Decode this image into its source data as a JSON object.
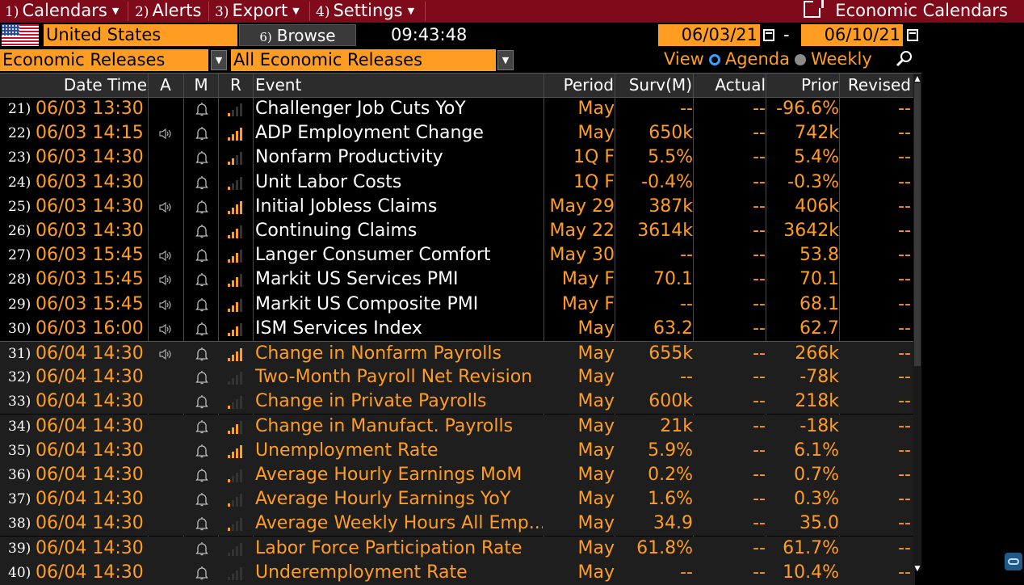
{
  "menu": {
    "items": [
      {
        "num": "1)",
        "label": "Calendars"
      },
      {
        "num": "2)",
        "label": "Alerts"
      },
      {
        "num": "3)",
        "label": "Export"
      },
      {
        "num": "4)",
        "label": "Settings"
      }
    ],
    "title": "Economic Calendars"
  },
  "toolbar": {
    "country": "United States",
    "browse_num": "6)",
    "browse_label": "Browse",
    "time": "09:43:48",
    "date_from": "06/03/21",
    "date_sep": "-",
    "date_to": "06/10/21",
    "category": "Economic Releases",
    "filter": "All Economic Releases",
    "view_label": "View",
    "view_agenda": "Agenda",
    "view_weekly": "Weekly"
  },
  "table": {
    "headers": {
      "datetime": "Date Time",
      "a": "A",
      "m": "M",
      "r": "R",
      "event": "Event",
      "period": "Period",
      "surv": "Surv(M)",
      "actual": "Actual",
      "prior": "Prior",
      "revised": "Revised"
    },
    "rows": [
      {
        "n": "21)",
        "dt": "06/03 13:30",
        "spk": false,
        "bars": 1,
        "event": "Challenger Job Cuts YoY",
        "period": "May",
        "surv": "--",
        "actual": "--",
        "prior": "-96.6%",
        "revised": "--"
      },
      {
        "n": "22)",
        "dt": "06/03 14:15",
        "spk": true,
        "bars": 4,
        "event": "ADP Employment Change",
        "period": "May",
        "surv": "650k",
        "actual": "--",
        "prior": "742k",
        "revised": "--"
      },
      {
        "n": "23)",
        "dt": "06/03 14:30",
        "spk": false,
        "bars": 2,
        "event": "Nonfarm Productivity",
        "period": "1Q F",
        "surv": "5.5%",
        "actual": "--",
        "prior": "5.4%",
        "revised": "--"
      },
      {
        "n": "24)",
        "dt": "06/03 14:30",
        "spk": false,
        "bars": 1,
        "event": "Unit Labor Costs",
        "period": "1Q F",
        "surv": "-0.4%",
        "actual": "--",
        "prior": "-0.3%",
        "revised": "--"
      },
      {
        "n": "25)",
        "dt": "06/03 14:30",
        "spk": true,
        "bars": 4,
        "event": "Initial Jobless Claims",
        "period": "May 29",
        "surv": "387k",
        "actual": "--",
        "prior": "406k",
        "revised": "--"
      },
      {
        "n": "26)",
        "dt": "06/03 14:30",
        "spk": false,
        "bars": 3,
        "event": "Continuing Claims",
        "period": "May 22",
        "surv": "3614k",
        "actual": "--",
        "prior": "3642k",
        "revised": "--"
      },
      {
        "n": "27)",
        "dt": "06/03 15:45",
        "spk": true,
        "bars": 3,
        "event": "Langer Consumer Comfort",
        "period": "May 30",
        "surv": "--",
        "actual": "--",
        "prior": "53.8",
        "revised": "--"
      },
      {
        "n": "28)",
        "dt": "06/03 15:45",
        "spk": true,
        "bars": 3,
        "event": "Markit US Services PMI",
        "period": "May F",
        "surv": "70.1",
        "actual": "--",
        "prior": "70.1",
        "revised": "--"
      },
      {
        "n": "29)",
        "dt": "06/03 15:45",
        "spk": true,
        "bars": 3,
        "event": "Markit US Composite PMI",
        "period": "May F",
        "surv": "--",
        "actual": "--",
        "prior": "68.1",
        "revised": "--"
      },
      {
        "n": "30)",
        "dt": "06/03 16:00",
        "spk": true,
        "bars": 3,
        "event": "ISM Services Index",
        "period": "May",
        "surv": "63.2",
        "actual": "--",
        "prior": "62.7",
        "revised": "--"
      },
      {
        "n": "31)",
        "dt": "06/04 14:30",
        "spk": true,
        "bars": 4,
        "event": "Change in Nonfarm Payrolls",
        "period": "May",
        "surv": "655k",
        "actual": "--",
        "prior": "266k",
        "revised": "--"
      },
      {
        "n": "32)",
        "dt": "06/04 14:30",
        "spk": false,
        "bars": 0,
        "event": "Two-Month Payroll Net Revision",
        "period": "May",
        "surv": "--",
        "actual": "--",
        "prior": "-78k",
        "revised": "--"
      },
      {
        "n": "33)",
        "dt": "06/04 14:30",
        "spk": false,
        "bars": 1,
        "event": "Change in Private Payrolls",
        "period": "May",
        "surv": "600k",
        "actual": "--",
        "prior": "218k",
        "revised": "--"
      },
      {
        "n": "34)",
        "dt": "06/04 14:30",
        "spk": false,
        "bars": 3,
        "event": "Change in Manufact. Payrolls",
        "period": "May",
        "surv": "21k",
        "actual": "--",
        "prior": "-18k",
        "revised": "--"
      },
      {
        "n": "35)",
        "dt": "06/04 14:30",
        "spk": false,
        "bars": 4,
        "event": "Unemployment Rate",
        "period": "May",
        "surv": "5.9%",
        "actual": "--",
        "prior": "6.1%",
        "revised": "--"
      },
      {
        "n": "36)",
        "dt": "06/04 14:30",
        "spk": false,
        "bars": 1,
        "event": "Average Hourly Earnings MoM",
        "period": "May",
        "surv": "0.2%",
        "actual": "--",
        "prior": "0.7%",
        "revised": "--"
      },
      {
        "n": "37)",
        "dt": "06/04 14:30",
        "spk": false,
        "bars": 1,
        "event": "Average Hourly Earnings YoY",
        "period": "May",
        "surv": "1.6%",
        "actual": "--",
        "prior": "0.3%",
        "revised": "--"
      },
      {
        "n": "38)",
        "dt": "06/04 14:30",
        "spk": false,
        "bars": 1,
        "event": "Average Weekly Hours All Emp...",
        "period": "May",
        "surv": "34.9",
        "actual": "--",
        "prior": "35.0",
        "revised": "--"
      },
      {
        "n": "39)",
        "dt": "06/04 14:30",
        "spk": false,
        "bars": 0,
        "event": "Labor Force Participation Rate",
        "period": "May",
        "surv": "61.8%",
        "actual": "--",
        "prior": "61.7%",
        "revised": "--"
      },
      {
        "n": "40)",
        "dt": "06/04 14:30",
        "spk": false,
        "bars": 0,
        "event": "Underemployment Rate",
        "period": "May",
        "surv": "--",
        "actual": "--",
        "prior": "10.4%",
        "revised": "--"
      }
    ]
  },
  "colors": {
    "accent": "#ff9d22",
    "menubar": "#7e0a1a",
    "radio_on": "#3aa0ff"
  },
  "icons": {
    "speaker": "speaker-icon",
    "bell": "bell-icon",
    "relevance": "signal-bars-icon",
    "calendar": "calendar-icon",
    "external": "external-link-icon",
    "zoom": "zoom-icon"
  }
}
